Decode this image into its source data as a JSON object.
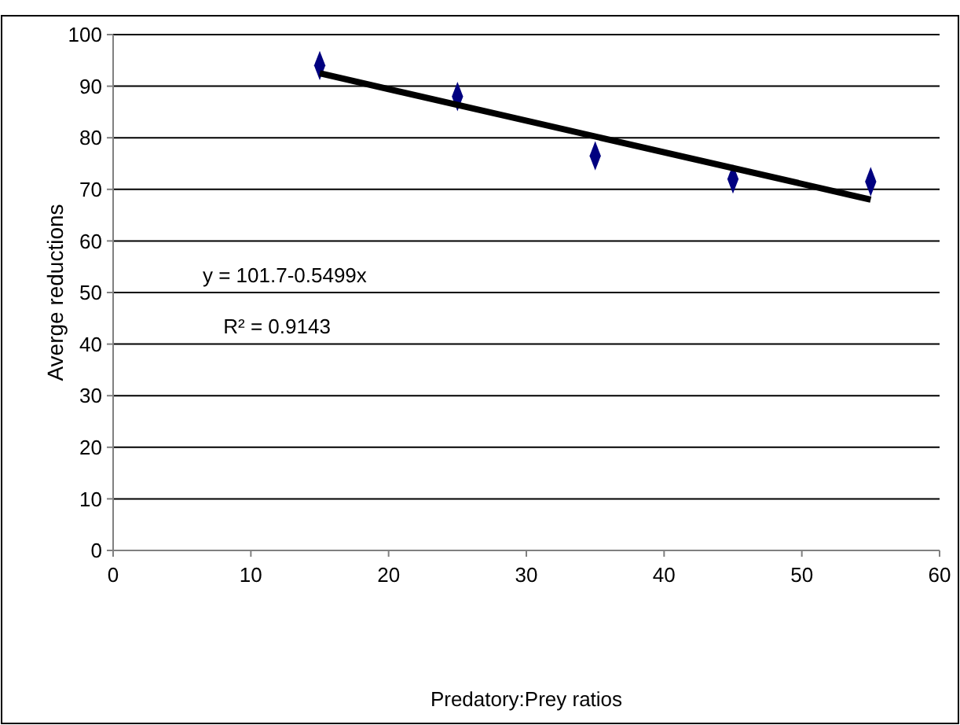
{
  "chart_data": {
    "type": "scatter",
    "xlabel": "Predatory:Prey ratios",
    "ylabel": "Averge reductions",
    "xlim": [
      0,
      60
    ],
    "xticks": [
      0,
      10,
      20,
      30,
      40,
      50,
      60
    ],
    "ylim": [
      0,
      100
    ],
    "yticks": [
      0,
      10,
      20,
      30,
      40,
      50,
      60,
      70,
      80,
      90,
      100
    ],
    "grid": "y",
    "series": [
      {
        "color": "#000080",
        "marker": "diamond",
        "x": [
          15,
          25,
          35,
          45,
          55
        ],
        "values": [
          94,
          88,
          76.5,
          72,
          71.5
        ]
      },
      {
        "type": "line",
        "color": "#000000",
        "marker": "none",
        "x": [
          15,
          55
        ],
        "values": [
          92.5,
          68
        ]
      }
    ],
    "annotations": [
      "y =  101.7-0.5499x",
      "R² = 0.9143"
    ]
  }
}
